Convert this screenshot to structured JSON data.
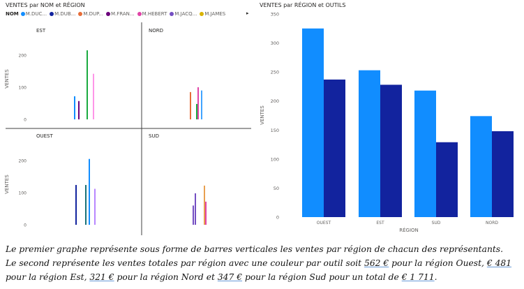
{
  "chart_data": [
    {
      "type": "bar",
      "title": "VENTES par NOM et RÉGION",
      "legend": {
        "title": "NOM",
        "items": [
          {
            "name": "M.DUC...",
            "color": "#118DFF"
          },
          {
            "name": "M.DUB...",
            "color": "#12239E"
          },
          {
            "name": "M.DUP...",
            "color": "#E66C37"
          },
          {
            "name": "M.FRAN...",
            "color": "#6B007B"
          },
          {
            "name": "M.HEBERT",
            "color": "#E044A7"
          },
          {
            "name": "M.JACQ...",
            "color": "#744EC2"
          },
          {
            "name": "M.JAMES",
            "color": "#D9B300"
          }
        ],
        "more_arrow": "▸"
      },
      "ylabel": "VENTES",
      "yticks": [
        0,
        100,
        200
      ],
      "ylim": [
        0,
        250
      ],
      "facets": [
        {
          "label": "EST",
          "bars": [
            {
              "color": "#118DFF",
              "value": 72
            },
            {
              "color": "#6B007B",
              "value": 57
            },
            {
              "color": "#1AAB40",
              "value": 215
            },
            {
              "color": "#FE96E8",
              "value": 142
            }
          ]
        },
        {
          "label": "NORD",
          "bars": [
            {
              "color": "#E66C37",
              "value": 85
            },
            {
              "color": "#1AAB40",
              "value": 48
            },
            {
              "color": "#E044A7",
              "value": 100
            },
            {
              "color": "#41A4FF",
              "value": 90
            }
          ]
        },
        {
          "label": "OUEST",
          "bars": [
            {
              "color": "#12239E",
              "value": 124
            },
            {
              "color": "#197278",
              "value": 124
            },
            {
              "color": "#118DFF",
              "value": 205
            },
            {
              "color": "#B887FF",
              "value": 112
            }
          ]
        },
        {
          "label": "SUD",
          "bars": [
            {
              "color": "#744EC2",
              "value": 60
            },
            {
              "color": "#744EC2",
              "value": 98
            },
            {
              "color": "#E8A050",
              "value": 122
            },
            {
              "color": "#E044A7",
              "value": 72
            }
          ]
        }
      ]
    },
    {
      "type": "bar",
      "title": "VENTES par RÉGION et OUTILS",
      "xlabel": "RÉGION",
      "ylabel": "VENTES",
      "ylim": [
        0,
        350
      ],
      "yticks": [
        0,
        50,
        100,
        150,
        200,
        250,
        300,
        350
      ],
      "categories": [
        "OUEST",
        "EST",
        "SUD",
        "NORD"
      ],
      "series": [
        {
          "color": "#118DFF",
          "values": [
            325,
            253,
            218,
            174
          ]
        },
        {
          "color": "#12239E",
          "values": [
            237,
            228,
            129,
            148
          ]
        }
      ]
    }
  ],
  "caption": {
    "line1": "Le premier graphe représente sous forme de barres verticales les ventes par région de chacun des représentants.",
    "line2_a": "Le second représente les ventes totales par région avec une couleur par outil soit ",
    "line2_b": "562 €",
    "line2_c": " pour la région Ouest, ",
    "line2_d": "€ 481",
    "line3_a": "pour la région Est, ",
    "line3_b": "321 €",
    "line3_c": " pour la région Nord et ",
    "line3_d": "347 €",
    "line3_e": " pour la région Sud pour un total de  ",
    "line3_f": "€ 1 711",
    "line3_g": "."
  }
}
